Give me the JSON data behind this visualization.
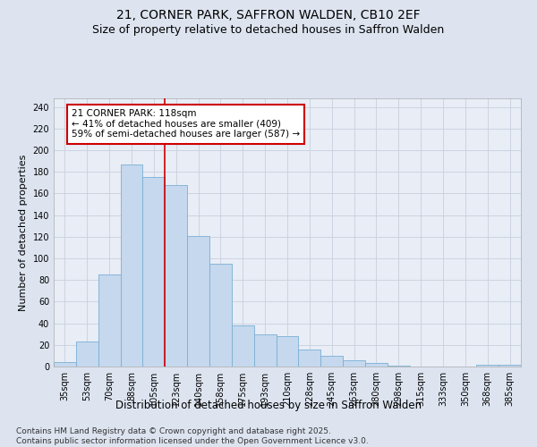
{
  "title1": "21, CORNER PARK, SAFFRON WALDEN, CB10 2EF",
  "title2": "Size of property relative to detached houses in Saffron Walden",
  "xlabel": "Distribution of detached houses by size in Saffron Walden",
  "ylabel": "Number of detached properties",
  "categories": [
    "35sqm",
    "53sqm",
    "70sqm",
    "88sqm",
    "105sqm",
    "123sqm",
    "140sqm",
    "158sqm",
    "175sqm",
    "193sqm",
    "210sqm",
    "228sqm",
    "245sqm",
    "263sqm",
    "280sqm",
    "298sqm",
    "315sqm",
    "333sqm",
    "350sqm",
    "368sqm",
    "385sqm"
  ],
  "values": [
    4,
    23,
    85,
    187,
    175,
    168,
    121,
    95,
    38,
    30,
    28,
    16,
    10,
    6,
    3,
    1,
    0,
    0,
    0,
    2,
    2
  ],
  "bar_color": "#c5d8ee",
  "bar_edge_color": "#7bafd4",
  "vline_x_index": 5.0,
  "vline_color": "#cc0000",
  "annotation_text": "21 CORNER PARK: 118sqm\n← 41% of detached houses are smaller (409)\n59% of semi-detached houses are larger (587) →",
  "annotation_box_color": "white",
  "annotation_box_edge_color": "#cc0000",
  "ylim": [
    0,
    248
  ],
  "yticks": [
    0,
    20,
    40,
    60,
    80,
    100,
    120,
    140,
    160,
    180,
    200,
    220,
    240
  ],
  "bg_color": "#dde4f0",
  "plot_bg_color": "#e8edf6",
  "footnote": "Contains HM Land Registry data © Crown copyright and database right 2025.\nContains public sector information licensed under the Open Government Licence v3.0.",
  "footnote_fontsize": 6.5,
  "title1_fontsize": 10,
  "title2_fontsize": 9,
  "xlabel_fontsize": 8.5,
  "ylabel_fontsize": 8,
  "tick_fontsize": 7,
  "annotation_fontsize": 7.5,
  "grid_color": "#c8d0de"
}
